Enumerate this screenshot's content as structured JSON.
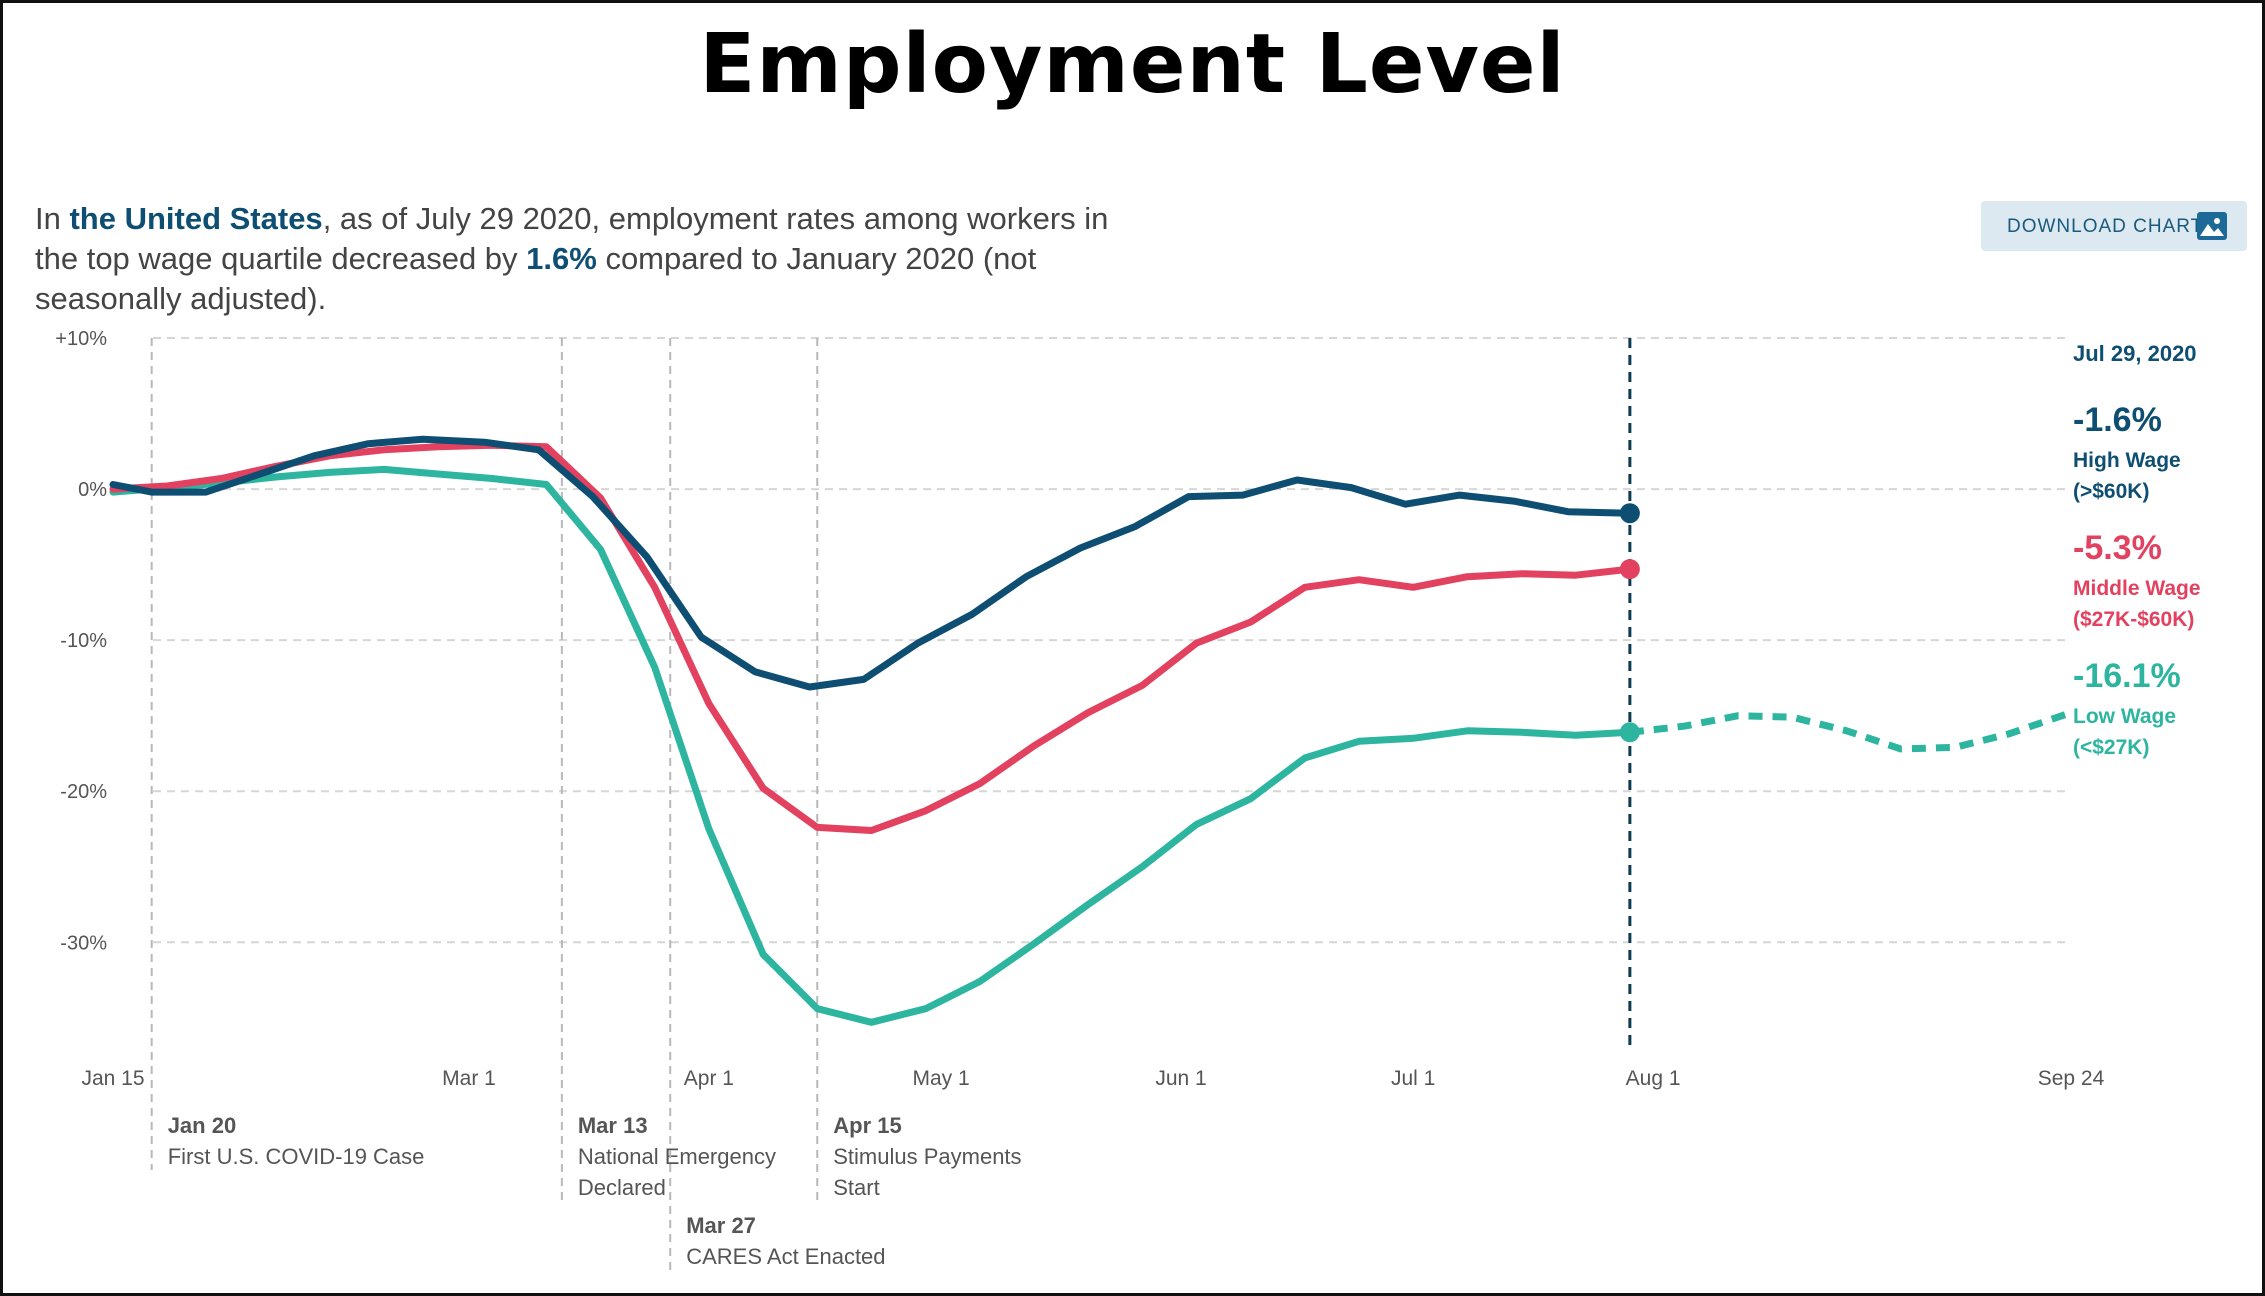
{
  "title": "Employment Level",
  "summary": {
    "p1": "In ",
    "place": "the United States",
    "p2": ", as of July 29 2020, employment rates among workers in the top wage quartile decreased by ",
    "pct": "1.6%",
    "p3": " compared to January 2020 (not seasonally adjusted)."
  },
  "download_label": "DOWNLOAD CHART",
  "download_icon": "image-icon",
  "colors": {
    "high": "#0e4e72",
    "middle": "#e2425f",
    "low": "#2db5a0",
    "grid": "#d6d6d6",
    "axis_text": "#555555"
  },
  "chart_data": {
    "type": "line",
    "title": "Employment Level",
    "xlabel": "",
    "ylabel": "",
    "x_range": [
      "2020-01-15",
      "2020-09-24"
    ],
    "ylim": [
      -37,
      10
    ],
    "y_ticks": [
      10,
      0,
      -10,
      -20,
      -30
    ],
    "y_tick_labels": [
      "+10%",
      "0%",
      "-10%",
      "-20%",
      "-30%"
    ],
    "x_ticks": [
      "2020-01-15",
      "2020-03-01",
      "2020-04-01",
      "2020-05-01",
      "2020-06-01",
      "2020-07-01",
      "2020-08-01",
      "2020-09-24"
    ],
    "x_tick_labels": [
      "Jan 15",
      "Mar 1",
      "Apr 1",
      "May 1",
      "Jun 1",
      "Jul 1",
      "Aug 1",
      "Sep 24"
    ],
    "grid": true,
    "current_date": "2020-07-29",
    "current_date_label": "Jul 29, 2020",
    "events": [
      {
        "date": "2020-01-20",
        "title": "Jan 20",
        "desc": [
          "First U.S. COVID-19 Case"
        ],
        "row": 0
      },
      {
        "date": "2020-03-13",
        "title": "Mar 13",
        "desc": [
          "National Emergency",
          "Declared"
        ],
        "row": 0
      },
      {
        "date": "2020-03-27",
        "title": "Mar 27",
        "desc": [
          "CARES Act Enacted"
        ],
        "row": 1
      },
      {
        "date": "2020-04-15",
        "title": "Apr 15",
        "desc": [
          "Stimulus Payments",
          "Start"
        ],
        "row": 0
      }
    ],
    "series": [
      {
        "key": "high",
        "value_label": "-1.6%",
        "name": [
          "High Wage",
          "(>$60K)"
        ],
        "points": [
          [
            "2020-01-15",
            0.3
          ],
          [
            "2020-01-20",
            -0.2
          ],
          [
            "2020-01-27",
            -0.2
          ],
          [
            "2020-02-03",
            1
          ],
          [
            "2020-02-10",
            2.2
          ],
          [
            "2020-02-17",
            3
          ],
          [
            "2020-02-24",
            3.3
          ],
          [
            "2020-03-03",
            3.1
          ],
          [
            "2020-03-10",
            2.6
          ],
          [
            "2020-03-17",
            -0.5
          ],
          [
            "2020-03-24",
            -4.5
          ],
          [
            "2020-03-31",
            -9.8
          ],
          [
            "2020-04-07",
            -12.1
          ],
          [
            "2020-04-14",
            -13.1
          ],
          [
            "2020-04-21",
            -12.6
          ],
          [
            "2020-04-28",
            -10.2
          ],
          [
            "2020-05-05",
            -8.3
          ],
          [
            "2020-05-12",
            -5.8
          ],
          [
            "2020-05-19",
            -3.9
          ],
          [
            "2020-05-26",
            -2.5
          ],
          [
            "2020-06-02",
            -0.5
          ],
          [
            "2020-06-09",
            -0.4
          ],
          [
            "2020-06-16",
            0.6
          ],
          [
            "2020-06-23",
            0.1
          ],
          [
            "2020-06-30",
            -1
          ],
          [
            "2020-07-07",
            -0.4
          ],
          [
            "2020-07-14",
            -0.8
          ],
          [
            "2020-07-21",
            -1.5
          ],
          [
            "2020-07-29",
            -1.6
          ]
        ]
      },
      {
        "key": "middle",
        "value_label": "-5.3%",
        "name": [
          "Middle Wage",
          "($27K-$60K)"
        ],
        "points": [
          [
            "2020-01-15",
            0
          ],
          [
            "2020-01-22",
            0.2
          ],
          [
            "2020-01-29",
            0.7
          ],
          [
            "2020-02-05",
            1.5
          ],
          [
            "2020-02-12",
            2.2
          ],
          [
            "2020-02-19",
            2.6
          ],
          [
            "2020-02-26",
            2.8
          ],
          [
            "2020-03-04",
            2.9
          ],
          [
            "2020-03-11",
            2.8
          ],
          [
            "2020-03-18",
            -0.6
          ],
          [
            "2020-03-25",
            -6.5
          ],
          [
            "2020-04-01",
            -14.2
          ],
          [
            "2020-04-08",
            -19.8
          ],
          [
            "2020-04-15",
            -22.4
          ],
          [
            "2020-04-22",
            -22.6
          ],
          [
            "2020-04-29",
            -21.3
          ],
          [
            "2020-05-06",
            -19.5
          ],
          [
            "2020-05-13",
            -17
          ],
          [
            "2020-05-20",
            -14.8
          ],
          [
            "2020-05-27",
            -13
          ],
          [
            "2020-06-03",
            -10.2
          ],
          [
            "2020-06-10",
            -8.8
          ],
          [
            "2020-06-17",
            -6.5
          ],
          [
            "2020-06-24",
            -6
          ],
          [
            "2020-07-01",
            -6.5
          ],
          [
            "2020-07-08",
            -5.8
          ],
          [
            "2020-07-15",
            -5.6
          ],
          [
            "2020-07-22",
            -5.7
          ],
          [
            "2020-07-29",
            -5.3
          ]
        ]
      },
      {
        "key": "low",
        "value_label": "-16.1%",
        "name": [
          "Low Wage",
          "(<$27K)"
        ],
        "points": [
          [
            "2020-01-15",
            -0.2
          ],
          [
            "2020-01-22",
            0.1
          ],
          [
            "2020-01-29",
            0.4
          ],
          [
            "2020-02-05",
            0.8
          ],
          [
            "2020-02-12",
            1.1
          ],
          [
            "2020-02-19",
            1.3
          ],
          [
            "2020-02-26",
            1
          ],
          [
            "2020-03-04",
            0.7
          ],
          [
            "2020-03-11",
            0.3
          ],
          [
            "2020-03-18",
            -4
          ],
          [
            "2020-03-25",
            -11.8
          ],
          [
            "2020-04-01",
            -22.5
          ],
          [
            "2020-04-08",
            -30.8
          ],
          [
            "2020-04-15",
            -34.4
          ],
          [
            "2020-04-22",
            -35.3
          ],
          [
            "2020-04-29",
            -34.4
          ],
          [
            "2020-05-06",
            -32.6
          ],
          [
            "2020-05-13",
            -30.1
          ],
          [
            "2020-05-20",
            -27.5
          ],
          [
            "2020-05-27",
            -25
          ],
          [
            "2020-06-03",
            -22.2
          ],
          [
            "2020-06-10",
            -20.5
          ],
          [
            "2020-06-17",
            -17.8
          ],
          [
            "2020-06-24",
            -16.7
          ],
          [
            "2020-07-01",
            -16.5
          ],
          [
            "2020-07-08",
            -16
          ],
          [
            "2020-07-15",
            -16.1
          ],
          [
            "2020-07-22",
            -16.3
          ],
          [
            "2020-07-29",
            -16.1
          ]
        ],
        "projection": [
          [
            "2020-07-29",
            -16.1
          ],
          [
            "2020-08-05",
            -15.7
          ],
          [
            "2020-08-12",
            -15
          ],
          [
            "2020-08-19",
            -15.1
          ],
          [
            "2020-08-26",
            -16
          ],
          [
            "2020-09-02",
            -17.2
          ],
          [
            "2020-09-09",
            -17.1
          ],
          [
            "2020-09-16",
            -16.2
          ],
          [
            "2020-09-24",
            -14.8
          ]
        ]
      }
    ]
  }
}
